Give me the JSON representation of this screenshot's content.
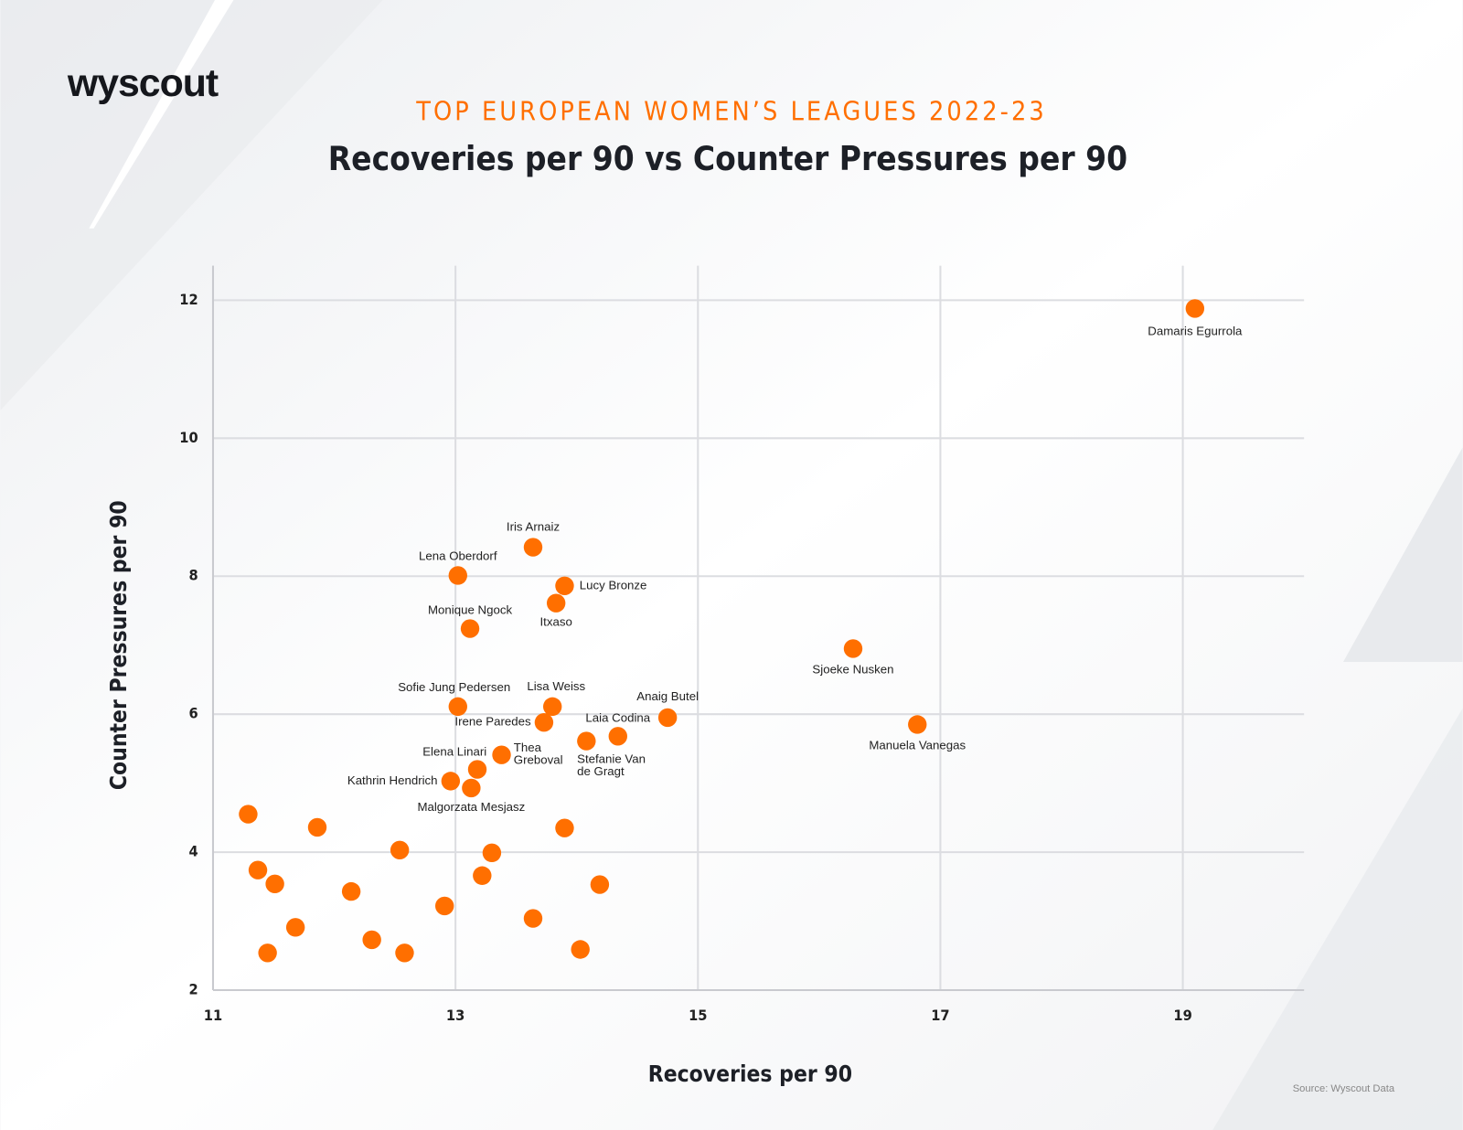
{
  "chart_data": {
    "type": "scatter",
    "logo": "wyscout",
    "heading": "TOP EUROPEAN WOMEN’S LEAGUES 2022-23",
    "title": "Recoveries per 90 vs Counter Pressures per 90",
    "x_label": "Recoveries per 90",
    "y_label": "Counter Pressures per 90",
    "source": "Source: Wyscout Data",
    "color": "#ff6f00",
    "grid": true,
    "xlim": [
      11,
      20
    ],
    "ylim": [
      2,
      12.5
    ],
    "xticks": [
      11,
      13,
      15,
      17,
      19
    ],
    "yticks": [
      2,
      4,
      6,
      8,
      10,
      12
    ],
    "x": [
      19.1,
      13.64,
      13.02,
      13.9,
      13.83,
      13.12,
      16.28,
      13.02,
      13.8,
      14.75,
      13.73,
      16.81,
      14.34,
      14.08,
      13.38,
      13.18,
      12.96,
      13.13,
      11.29,
      11.86,
      12.54,
      13.9,
      13.3,
      11.37,
      11.51,
      13.22,
      14.19,
      12.14,
      12.91,
      13.64,
      11.68,
      12.31,
      14.03,
      11.45,
      12.58
    ],
    "y": [
      11.88,
      8.42,
      8.01,
      7.86,
      7.61,
      7.24,
      6.95,
      6.11,
      6.11,
      5.95,
      5.88,
      5.85,
      5.68,
      5.61,
      5.41,
      5.2,
      5.03,
      4.93,
      4.55,
      4.36,
      4.03,
      4.35,
      3.99,
      3.74,
      3.54,
      3.66,
      3.53,
      3.43,
      3.22,
      3.04,
      2.91,
      2.73,
      2.59,
      2.54,
      2.54
    ],
    "labels": [
      [
        "Damaris Egurrola"
      ],
      [
        "Iris Arnaiz"
      ],
      [
        "Lena Oberdorf"
      ],
      [
        "Lucy Bronze"
      ],
      [
        "Itxaso"
      ],
      [
        "Monique Ngock"
      ],
      [
        "Sjoeke Nusken"
      ],
      [
        "Sofie Jung Pedersen"
      ],
      [
        "Lisa Weiss"
      ],
      [
        "Anaig Butel"
      ],
      [
        "Irene Paredes"
      ],
      [
        "Manuela Vanegas"
      ],
      [
        "Laia Codina"
      ],
      [
        "Stefanie Van",
        "de Gragt"
      ],
      [
        "Thea",
        "Greboval"
      ],
      [
        "Elena Linari"
      ],
      [
        "Kathrin Hendrich"
      ],
      [
        "Malgorzata Mesjasz"
      ],
      null,
      null,
      null,
      null,
      null,
      null,
      null,
      null,
      null,
      null,
      null,
      null,
      null,
      null,
      null,
      null,
      null
    ]
  }
}
